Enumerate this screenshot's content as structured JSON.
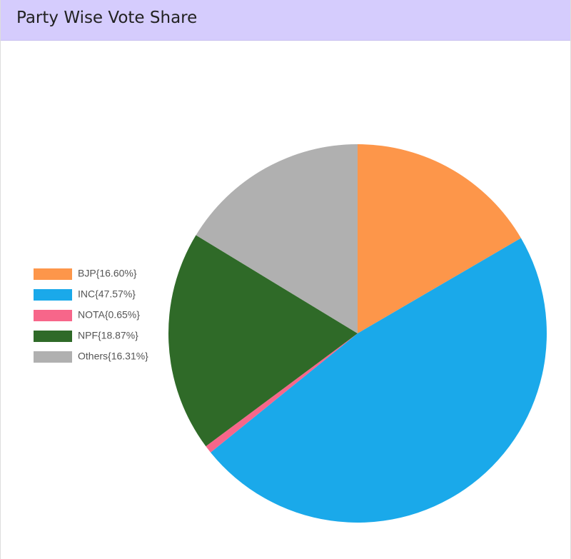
{
  "chart_data": {
    "type": "pie",
    "title": "Party Wise Vote Share",
    "categories": [
      "BJP{16.60%}",
      "INC{47.57%}",
      "NOTA{0.65%}",
      "NPF{18.87%}",
      "Others{16.31%}"
    ],
    "values": [
      16.6,
      47.57,
      0.65,
      18.87,
      16.31
    ],
    "colors": [
      "#fd964a",
      "#1aa9ea",
      "#f7668a",
      "#2f6a28",
      "#b0b0b0"
    ],
    "legend": "left"
  }
}
